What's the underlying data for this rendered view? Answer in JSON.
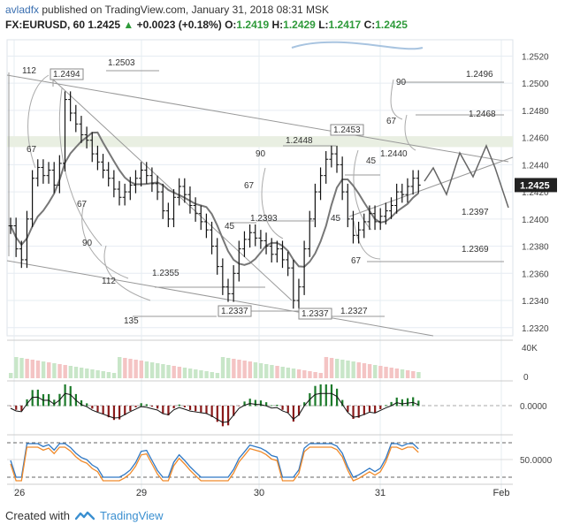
{
  "header": {
    "author": "avladfx",
    "published": " published on TradingView.com, January 31, 2018 08:31 MSK",
    "symbol": "FX:EURUSD, 60",
    "last": "1.2425",
    "change": "+0.0023 (+0.18%)",
    "o_label": "O:",
    "o_val": "1.2419",
    "h_label": "H:",
    "h_val": "1.2429",
    "l_label": "L:",
    "l_val": "1.2417",
    "c_label": "C:",
    "c_val": "1.2425"
  },
  "footer": {
    "created_with": "Created with",
    "brand": "TradingView"
  },
  "colors": {
    "candles": "#111111",
    "ma": "#777777",
    "grid": "#e6ecf2",
    "volume_up": "#f4c4c4",
    "volume_down": "#c8e6c8",
    "hist_up": "#1c7a2a",
    "hist_down": "#8a1a1a",
    "stoch_k": "#2f78c4",
    "stoch_d": "#f08a2a",
    "blue_line": "#a8c4e0",
    "price_tag": "#222222"
  },
  "chart_data": {
    "type": "candlestick",
    "y_ticks": [
      "1.2520",
      "1.2500",
      "1.2480",
      "1.2460",
      "1.2440",
      "1.2420",
      "1.2400",
      "1.2380",
      "1.2360",
      "1.2340",
      "1.2320"
    ],
    "ylim": [
      1.2314,
      1.2532
    ],
    "x_ticks": [
      "26",
      "29",
      "30",
      "31",
      "Feb"
    ],
    "last_price": "1.2425",
    "closes": [
      1.2395,
      1.2378,
      1.237,
      1.24,
      1.243,
      1.2438,
      1.2432,
      1.2436,
      1.2425,
      1.2441,
      1.2488,
      1.2478,
      1.247,
      1.2462,
      1.2458,
      1.2448,
      1.2442,
      1.2436,
      1.243,
      1.2422,
      1.2416,
      1.242,
      1.2425,
      1.243,
      1.2436,
      1.2432,
      1.2426,
      1.242,
      1.2406,
      1.24,
      1.2416,
      1.2424,
      1.2418,
      1.241,
      1.2404,
      1.2398,
      1.2392,
      1.238,
      1.2365,
      1.235,
      1.2345,
      1.236,
      1.2378,
      1.2385,
      1.239,
      1.2386,
      1.2384,
      1.238,
      1.2374,
      1.2378,
      1.237,
      1.2364,
      1.234,
      1.235,
      1.2378,
      1.24,
      1.242,
      1.2432,
      1.2444,
      1.2448,
      1.244,
      1.242,
      1.24,
      1.2388,
      1.2392,
      1.2398,
      1.2404,
      1.2398,
      1.2402,
      1.2406,
      1.241,
      1.242,
      1.2418,
      1.2424,
      1.243,
      1.2425
    ],
    "levels": [
      {
        "label": "1.2503",
        "value": 1.2503
      },
      {
        "label": "1.2494",
        "value": 1.2494
      },
      {
        "label": "1.2496",
        "value": 1.2496
      },
      {
        "label": "1.2468",
        "value": 1.2468
      },
      {
        "label": "1.2453",
        "value": 1.2453
      },
      {
        "label": "1.2448",
        "value": 1.2448
      },
      {
        "label": "1.2440",
        "value": 1.244
      },
      {
        "label": "1.2397",
        "value": 1.2397
      },
      {
        "label": "1.2393",
        "value": 1.2393
      },
      {
        "label": "1.2369",
        "value": 1.2369
      },
      {
        "label": "1.2355",
        "value": 1.2355
      },
      {
        "label": "1.2337",
        "value": 1.2337
      },
      {
        "label": "1.2337",
        "value": 1.2337
      },
      {
        "label": "1.2327",
        "value": 1.2327
      }
    ],
    "fan_labels": [
      "112",
      "67",
      "67",
      "90",
      "112",
      "135",
      "90",
      "67",
      "45",
      "45",
      "90",
      "67",
      "45",
      "67"
    ],
    "volume_axis": [
      "40K",
      "0"
    ],
    "macd_axis": "0.0000",
    "stoch_axis": "50.0000"
  }
}
